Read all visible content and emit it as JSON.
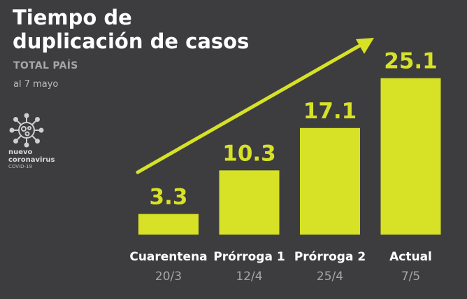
{
  "header": {
    "title_line1": "Tiempo de",
    "title_line2": "duplicación de casos",
    "subtitle": "TOTAL PAÍS",
    "date": "al 7 mayo"
  },
  "logo": {
    "line1": "nuevo",
    "line2": "coronavirus",
    "line3": "COVID-19",
    "icon": "virus-icon"
  },
  "colors": {
    "background": "#3d3d3f",
    "bar": "#d7e227",
    "category_label": "#ffffff",
    "date_label": "#a6a6a6"
  },
  "chart_data": {
    "type": "bar",
    "categories": [
      "Cuarentena",
      "Prórroga 1",
      "Prórroga 2",
      "Actual"
    ],
    "dates": [
      "20/3",
      "12/4",
      "25/4",
      "7/5"
    ],
    "values": [
      3.3,
      10.3,
      17.1,
      25.1
    ],
    "value_labels": [
      "3.3",
      "10.3",
      "17.1",
      "25.1"
    ],
    "ylim": [
      0,
      26
    ],
    "trend_arrow": true,
    "grid": false
  }
}
